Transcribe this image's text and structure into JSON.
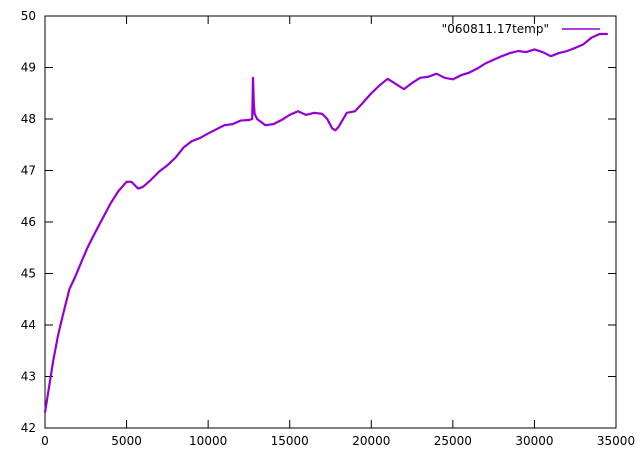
{
  "chart_data": {
    "type": "line",
    "title": "",
    "xlabel": "",
    "ylabel": "",
    "xlim": [
      0,
      35000
    ],
    "ylim": [
      42,
      50
    ],
    "x_ticks": [
      0,
      5000,
      10000,
      15000,
      20000,
      25000,
      30000,
      35000
    ],
    "y_ticks": [
      42,
      43,
      44,
      45,
      46,
      47,
      48,
      49,
      50
    ],
    "grid": false,
    "legend_position": "top-right",
    "series": [
      {
        "name": "\"060811.17temp\"",
        "color": "#9400d3",
        "x": [
          0,
          200,
          500,
          800,
          1100,
          1500,
          1800,
          2200,
          2600,
          3000,
          3500,
          4000,
          4500,
          5000,
          5300,
          5700,
          6000,
          6500,
          7000,
          7500,
          8000,
          8500,
          9000,
          9500,
          10000,
          10500,
          11000,
          11500,
          12000,
          12500,
          12700,
          12750,
          12800,
          12850,
          13000,
          13500,
          14000,
          14500,
          15000,
          15500,
          16000,
          16500,
          17000,
          17300,
          17600,
          17800,
          18000,
          18500,
          19000,
          19500,
          20000,
          20500,
          21000,
          21500,
          22000,
          22500,
          23000,
          23500,
          24000,
          24500,
          25000,
          25500,
          26000,
          26500,
          27000,
          27500,
          28000,
          28500,
          29000,
          29500,
          30000,
          30500,
          31000,
          31500,
          32000,
          32500,
          33000,
          33500,
          34000,
          34500
        ],
        "y": [
          42.3,
          42.7,
          43.3,
          43.8,
          44.2,
          44.7,
          44.9,
          45.2,
          45.5,
          45.75,
          46.05,
          46.35,
          46.6,
          46.78,
          46.78,
          46.65,
          46.68,
          46.82,
          46.98,
          47.1,
          47.25,
          47.45,
          47.57,
          47.63,
          47.72,
          47.8,
          47.88,
          47.9,
          47.97,
          47.98,
          48.0,
          48.8,
          48.3,
          48.1,
          48.0,
          47.88,
          47.9,
          47.98,
          48.08,
          48.15,
          48.08,
          48.12,
          48.1,
          48.0,
          47.82,
          47.78,
          47.85,
          48.12,
          48.15,
          48.32,
          48.5,
          48.65,
          48.78,
          48.68,
          48.58,
          48.7,
          48.8,
          48.82,
          48.88,
          48.8,
          48.77,
          48.85,
          48.9,
          48.98,
          49.08,
          49.15,
          49.22,
          49.28,
          49.32,
          49.3,
          49.35,
          49.3,
          49.22,
          49.28,
          49.32,
          49.38,
          49.45,
          49.58,
          49.65,
          49.65
        ]
      }
    ]
  }
}
